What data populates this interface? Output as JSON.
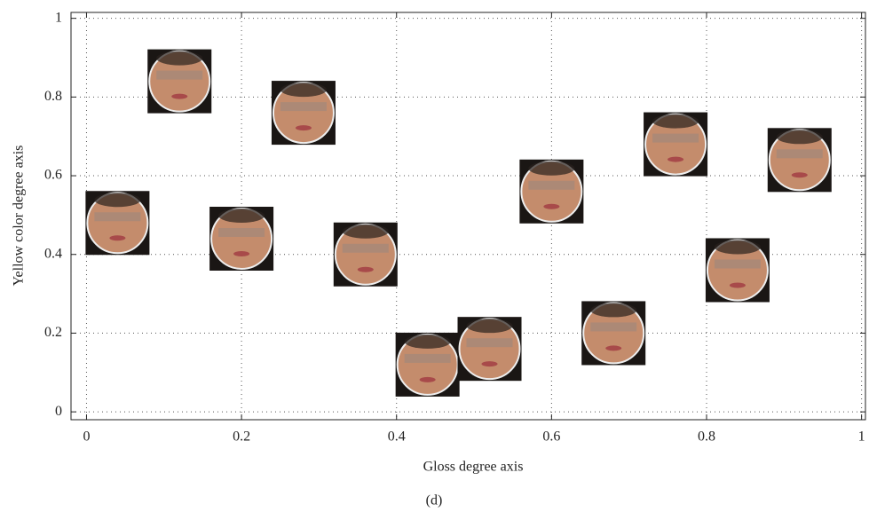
{
  "chart_data": {
    "type": "scatter",
    "xlabel": "Gloss degree axis",
    "ylabel": "Yellow color degree axis",
    "caption": "(d)",
    "x": [
      0.12,
      0.28,
      0.04,
      0.2,
      0.36,
      0.44,
      0.52,
      0.6,
      0.68,
      0.76,
      0.92,
      0.84
    ],
    "values": [
      0.84,
      0.76,
      0.48,
      0.44,
      0.4,
      0.12,
      0.16,
      0.56,
      0.2,
      0.68,
      0.64,
      0.36
    ],
    "color": "#c48c6c",
    "xlim": [
      -0.02,
      1.005
    ],
    "ylim": [
      -0.02,
      1.015
    ],
    "xticks": [
      0,
      0.2,
      0.4,
      0.6,
      0.8,
      1
    ],
    "yticks": [
      0,
      0.2,
      0.4,
      0.6,
      0.8,
      1
    ],
    "grid": true
  }
}
